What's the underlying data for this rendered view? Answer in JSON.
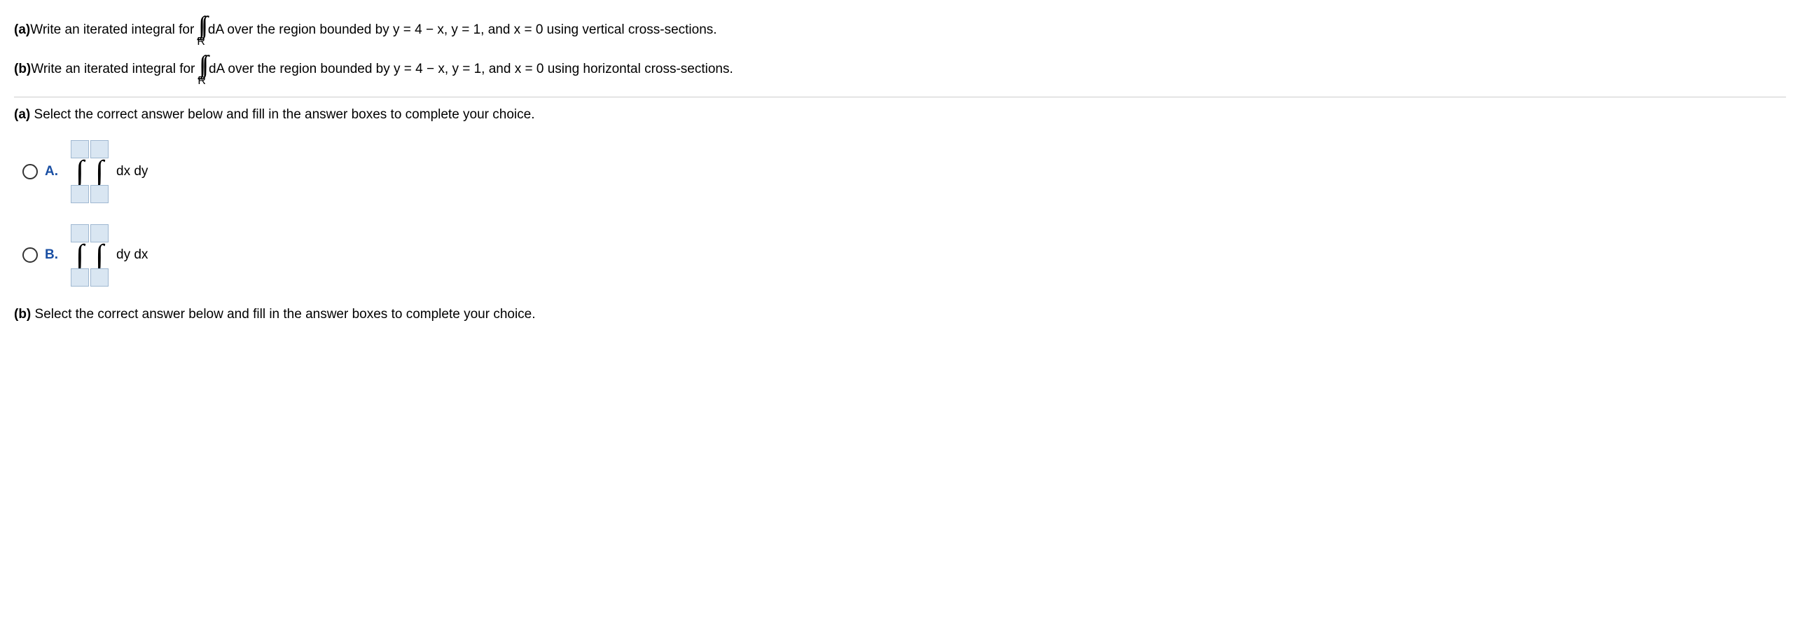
{
  "problem": {
    "parts": [
      {
        "label": "(a)",
        "before_int": " Write an iterated integral for ",
        "after_int": " dA over the region bounded by y = 4 − x, y = 1, and x = 0 using vertical cross-sections.",
        "int_sub": "R"
      },
      {
        "label": "(b)",
        "before_int": " Write an iterated integral for ",
        "after_int": " dA over the region bounded by y = 4 − x, y = 1, and x = 0 using horizontal cross-sections.",
        "int_sub": "R"
      }
    ]
  },
  "section_a": {
    "label": "(a)",
    "instruction": " Select the correct answer below and fill in the answer boxes to complete your choice.",
    "choices": [
      {
        "letter": "A.",
        "differential": "dx dy"
      },
      {
        "letter": "B.",
        "differential": "dy dx"
      }
    ]
  },
  "section_b": {
    "label": "(b)",
    "instruction": " Select the correct answer below and fill in the answer boxes to complete your choice."
  },
  "styling": {
    "font_size": 19,
    "limit_box_bg": "#d9e6f2",
    "limit_box_border": "#9fb8d1",
    "choice_label_color": "#1a4fa3",
    "separator_color": "#cccccc",
    "integral_font": "Times New Roman"
  }
}
